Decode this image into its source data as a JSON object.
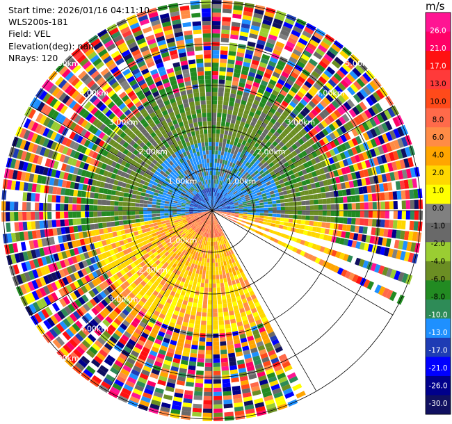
{
  "header": {
    "start_time": "Start time: 2026/01/16 04:11:10",
    "instrument": "WLS200s-181",
    "field": "Field: VEL",
    "elevation": "Elevation(deg): nan",
    "nrays": "NRays: 120"
  },
  "chart_data": {
    "type": "heatmap",
    "subtype": "polar-ppi",
    "field": "VEL",
    "units": "m/s",
    "n_rays": 120,
    "range_rings_km": [
      1,
      2,
      3,
      4,
      5
    ],
    "range_ring_labels": [
      "1.00km",
      "2.00km",
      "3.00km",
      "4.00km",
      "5.00km"
    ],
    "max_range_km": 5.0,
    "azimuth_lines": true,
    "missing_sector_deg": [
      118,
      152
    ],
    "colorbar": {
      "label": "m/s",
      "ticks": [
        "26.0",
        "21.0",
        "17.0",
        "13.0",
        "10.0",
        "8.0",
        "6.0",
        "4.0",
        "2.0",
        "1.0",
        "0.0",
        "-1.0",
        "-2.0",
        "-4.0",
        "-6.0",
        "-8.0",
        "-10.0",
        "-13.0",
        "-17.0",
        "-21.0",
        "-26.0",
        "-30.0"
      ],
      "colors": [
        "#ff1493",
        "#ff0066",
        "#ff1111",
        "#ff3a3a",
        "#ff4a1a",
        "#ff6a4a",
        "#ff8c46",
        "#ffa500",
        "#ffd700",
        "#ffff00",
        "#808080",
        "#696969",
        "#9acd32",
        "#6b8e23",
        "#228b22",
        "#2e8b57",
        "#1e90ff",
        "#1e3cb4",
        "#0000ff",
        "#00008b",
        "#101060"
      ]
    }
  }
}
